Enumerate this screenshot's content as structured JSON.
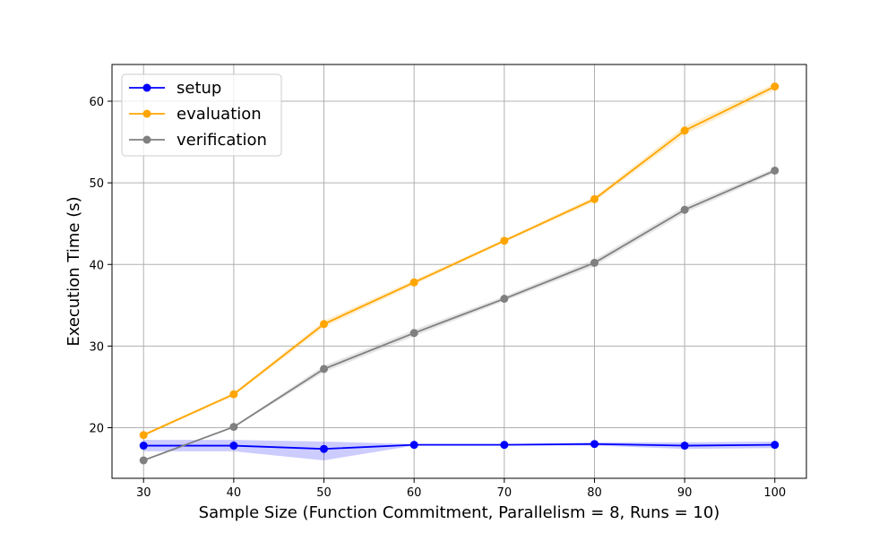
{
  "chart_data": {
    "type": "line",
    "title": "",
    "xlabel": "Sample Size (Function Commitment, Parallelism = 8, Runs = 10)",
    "ylabel": "Execution Time (s)",
    "x": [
      30,
      40,
      50,
      60,
      70,
      80,
      90,
      100
    ],
    "xticks": [
      "30",
      "40",
      "50",
      "60",
      "70",
      "80",
      "90",
      "100"
    ],
    "yticks": [
      "20",
      "30",
      "40",
      "50",
      "60"
    ],
    "xlim": [
      26.5,
      103.5
    ],
    "ylim": [
      13.8,
      64.5
    ],
    "grid": true,
    "legend_position": "upper-left",
    "series": [
      {
        "name": "setup",
        "color": "#0000ff",
        "values": [
          17.8,
          17.8,
          17.4,
          17.9,
          17.9,
          18.0,
          17.8,
          17.9
        ],
        "band_low": [
          17.1,
          17.1,
          16.0,
          17.8,
          17.8,
          17.8,
          17.4,
          17.5
        ],
        "band_high": [
          18.5,
          18.5,
          18.3,
          18.0,
          18.0,
          18.2,
          18.2,
          18.3
        ]
      },
      {
        "name": "evaluation",
        "color": "#ffa500",
        "values": [
          19.1,
          24.1,
          32.7,
          37.8,
          42.9,
          48.0,
          56.4,
          61.8
        ],
        "band_low": [
          18.9,
          23.9,
          32.3,
          37.5,
          42.7,
          47.7,
          55.9,
          61.4
        ],
        "band_high": [
          19.3,
          24.3,
          33.1,
          38.1,
          43.1,
          48.3,
          56.9,
          62.2
        ]
      },
      {
        "name": "verification",
        "color": "#808080",
        "values": [
          16.0,
          20.1,
          27.2,
          31.6,
          35.8,
          40.2,
          46.7,
          51.5
        ],
        "band_low": [
          15.9,
          20.0,
          26.8,
          31.2,
          35.5,
          39.8,
          46.3,
          51.2
        ],
        "band_high": [
          16.1,
          20.2,
          27.6,
          32.0,
          36.1,
          40.6,
          47.1,
          51.8
        ]
      }
    ]
  }
}
